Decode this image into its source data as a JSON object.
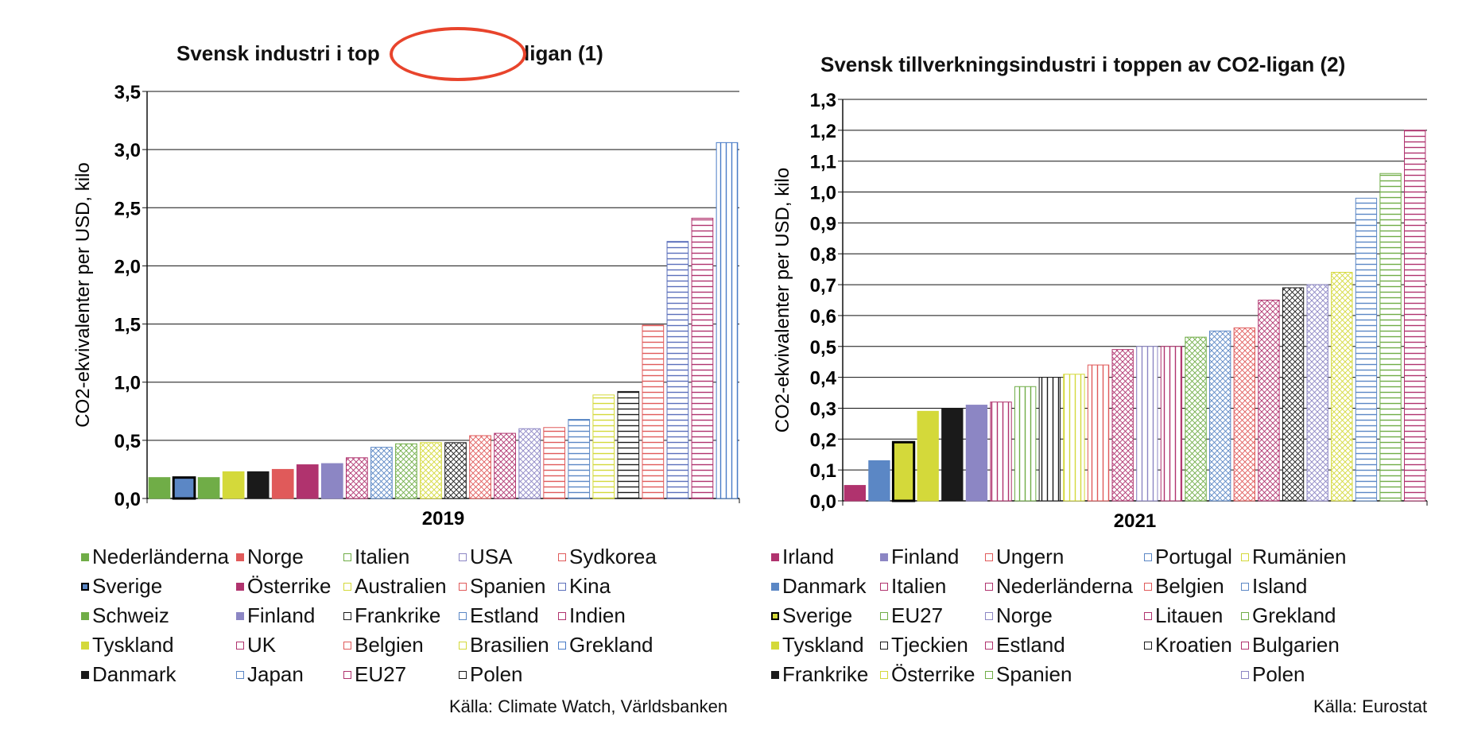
{
  "chart_data": [
    {
      "type": "bar",
      "title_left": "Svensk industri i top",
      "title_right": "O2-ligan (1)",
      "ylabel": "CO2-ekvivalenter per USD, kilo",
      "xlabel": "2019",
      "ylim": [
        0,
        3.5
      ],
      "yticks": [
        "0,0",
        "0,5",
        "1,0",
        "1,5",
        "2,0",
        "2,5",
        "3,0",
        "3,5"
      ],
      "grid": true,
      "legend_position": "bottom",
      "categories": [
        "Nederländerna",
        "Sverige",
        "Schweiz",
        "Tyskland",
        "Danmark",
        "Norge",
        "Österrike",
        "Finland",
        "UK",
        "Japan",
        "Italien",
        "Australien",
        "Frankrike",
        "Belgien",
        "EU27",
        "USA",
        "Spanien",
        "Estland",
        "Brasilien",
        "Polen",
        "Sydkorea",
        "Kina",
        "Indien",
        "Grekland"
      ],
      "values": [
        0.18,
        0.18,
        0.18,
        0.23,
        0.23,
        0.25,
        0.29,
        0.3,
        0.35,
        0.44,
        0.47,
        0.48,
        0.48,
        0.54,
        0.56,
        0.6,
        0.61,
        0.68,
        0.89,
        0.92,
        1.49,
        2.21,
        2.41,
        3.06
      ],
      "highlight": "Sverige",
      "colors": [
        "#70ad47",
        "#5b87c5",
        "#70ad47",
        "#d4d93a",
        "#1a1a1a",
        "#e05a5a",
        "#b0336e",
        "#8c86c4",
        "#b0336e",
        "#5b87c5",
        "#70ad47",
        "#d4d93a",
        "#1a1a1a",
        "#e05a5a",
        "#b0336e",
        "#8c86c4",
        "#e05a5a",
        "#5b87c5",
        "#d4d93a",
        "#1a1a1a",
        "#e05a5a",
        "#5b6fbb",
        "#b0336e",
        "#4a7cc7"
      ],
      "patterns": [
        "solid",
        "solid",
        "solid",
        "solid",
        "solid",
        "solid",
        "solid",
        "solid",
        "crosshatch",
        "crosshatch",
        "crosshatch",
        "crosshatch",
        "crosshatch",
        "crosshatch",
        "crosshatch",
        "crosshatch",
        "hlines",
        "hlines",
        "hlines",
        "hlines",
        "hlines",
        "hlines",
        "hlines",
        "vlines"
      ],
      "legend": [
        "Nederländerna",
        "Norge",
        "Italien",
        "USA",
        "Sydkorea",
        "Sverige",
        "Österrike",
        "Australien",
        "Spanien",
        "Kina",
        "Schweiz",
        "Finland",
        "Frankrike",
        "Estland",
        "Indien",
        "Tyskland",
        "UK",
        "Belgien",
        "Brasilien",
        "Grekland",
        "Danmark",
        "Japan",
        "EU27",
        "Polen"
      ],
      "source": "Källa: Climate Watch, Världsbanken"
    },
    {
      "type": "bar",
      "title": "Svensk tillverkningsindustri i toppen av CO2-ligan (2)",
      "ylabel": "CO2-ekvivalenter per USD, kilo",
      "xlabel": "2021",
      "ylim": [
        0,
        1.3
      ],
      "yticks": [
        "0,0",
        "0,1",
        "0,2",
        "0,3",
        "0,4",
        "0,5",
        "0,6",
        "0,7",
        "0,8",
        "0,9",
        "1,0",
        "1,1",
        "1,2",
        "1,3"
      ],
      "grid": true,
      "legend_position": "bottom",
      "categories": [
        "Irland",
        "Danmark",
        "Sverige",
        "Tyskland",
        "Frankrike",
        "Finland",
        "Italien",
        "EU27",
        "Tjeckien",
        "Österrike",
        "Ungern",
        "Nederländerna",
        "Norge",
        "Estland",
        "Spanien",
        "Portugal",
        "Belgien",
        "Litauen",
        "Kroatien",
        "Polen",
        "Rumänien",
        "Island",
        "Grekland",
        "Bulgarien"
      ],
      "values": [
        0.05,
        0.13,
        0.19,
        0.29,
        0.3,
        0.31,
        0.32,
        0.37,
        0.4,
        0.41,
        0.44,
        0.49,
        0.5,
        0.5,
        0.53,
        0.55,
        0.56,
        0.65,
        0.69,
        0.7,
        0.74,
        0.98,
        1.06,
        1.2
      ],
      "highlight": "Sverige",
      "colors": [
        "#b0336e",
        "#5b87c5",
        "#d4d93a",
        "#d4d93a",
        "#1a1a1a",
        "#8c86c4",
        "#b0336e",
        "#70ad47",
        "#1a1a1a",
        "#d4d93a",
        "#e05a5a",
        "#b0336e",
        "#8c86c4",
        "#b0336e",
        "#70ad47",
        "#5b87c5",
        "#e05a5a",
        "#b0336e",
        "#1a1a1a",
        "#8c86c4",
        "#d4d93a",
        "#5b87c5",
        "#70ad47",
        "#b0336e"
      ],
      "patterns": [
        "solid",
        "solid",
        "solid",
        "solid",
        "solid",
        "solid",
        "vlines",
        "vlines",
        "vlines",
        "vlines",
        "vlines",
        "crosshatch",
        "vlines",
        "vlines",
        "crosshatch",
        "crosshatch",
        "crosshatch",
        "crosshatch",
        "crosshatch",
        "crosshatch",
        "crosshatch",
        "hlines",
        "hlines",
        "hlines"
      ],
      "legend": [
        "Irland",
        "Finland",
        "Ungern",
        "Portugal",
        "Rumänien",
        "Danmark",
        "Italien",
        "Nederländerna",
        "Belgien",
        "Island",
        "Sverige",
        "EU27",
        "Norge",
        "Litauen",
        "Grekland",
        "Tyskland",
        "Tjeckien",
        "Estland",
        "Kroatien",
        "Bulgarien",
        "Frankrike",
        "Österrike",
        "Spanien",
        "",
        "Polen"
      ],
      "source": "Källa: Eurostat"
    }
  ]
}
